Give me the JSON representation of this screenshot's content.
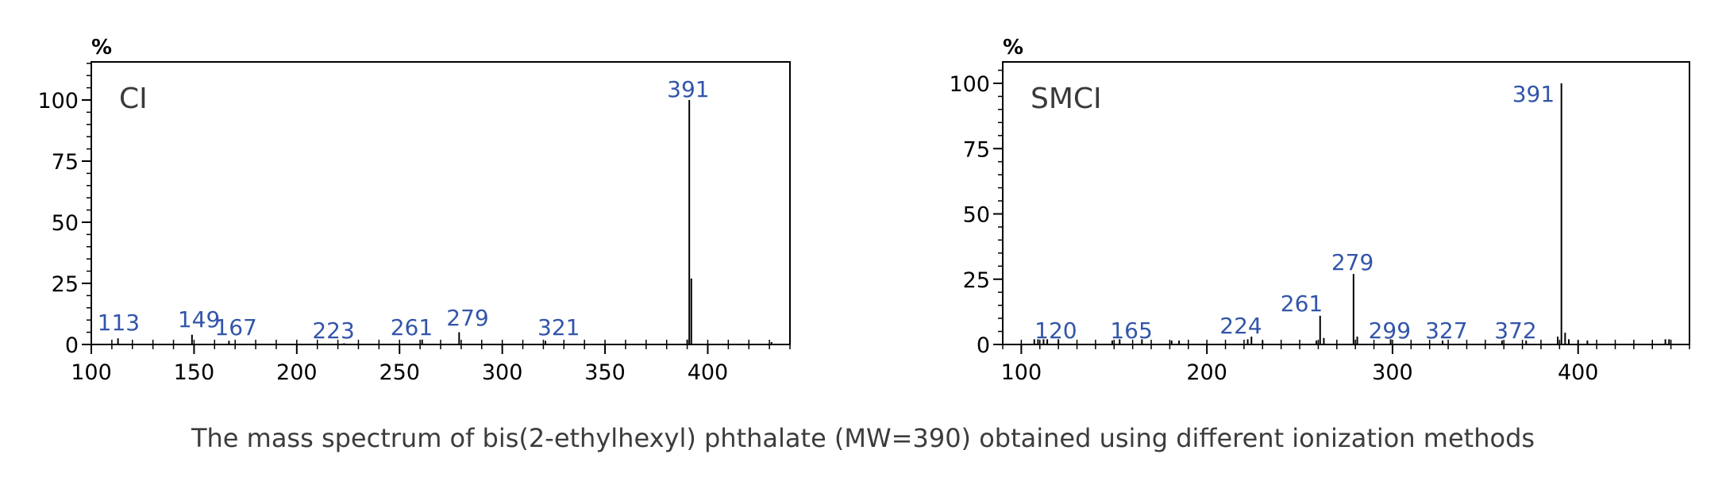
{
  "caption": "The mass spectrum of bis(2-ethylhexyl) phthalate (MW=390) obtained using different ionization methods",
  "colors": {
    "peak_label": "#3355aa",
    "axis": "#000000",
    "caption": "#3c3c3c"
  },
  "chart_data": [
    {
      "type": "bar",
      "panel_label": "CI",
      "y_unit": "%",
      "xlim": [
        100,
        440
      ],
      "ylim": [
        0,
        115
      ],
      "x_ticks": [
        100,
        150,
        200,
        250,
        300,
        350,
        400
      ],
      "y_ticks": [
        0,
        25,
        50,
        75,
        100
      ],
      "peaks": [
        {
          "x": 113,
          "y": 2.5,
          "label": "113"
        },
        {
          "x": 149,
          "y": 4,
          "label": "149"
        },
        {
          "x": 167,
          "y": 1.5,
          "label": "167"
        },
        {
          "x": 223,
          "y": 0.5,
          "label": "223"
        },
        {
          "x": 261,
          "y": 2,
          "label": "261"
        },
        {
          "x": 279,
          "y": 5,
          "label": "279"
        },
        {
          "x": 321,
          "y": 1.5,
          "label": "321"
        },
        {
          "x": 390,
          "y": 2
        },
        {
          "x": 391,
          "y": 100,
          "label": "391"
        },
        {
          "x": 392,
          "y": 27
        },
        {
          "x": 431,
          "y": 1
        }
      ]
    },
    {
      "type": "bar",
      "panel_label": "SMCI",
      "y_unit": "%",
      "xlim": [
        90,
        460
      ],
      "ylim": [
        0,
        110
      ],
      "x_ticks": [
        100,
        200,
        300,
        400
      ],
      "y_ticks": [
        0,
        25,
        50,
        75,
        100
      ],
      "peaks": [
        {
          "x": 107,
          "y": 2
        },
        {
          "x": 109,
          "y": 2
        },
        {
          "x": 112,
          "y": 2
        },
        {
          "x": 114,
          "y": 2
        },
        {
          "x": 120,
          "y": 2,
          "label": "120"
        },
        {
          "x": 149,
          "y": 1.5
        },
        {
          "x": 153,
          "y": 2
        },
        {
          "x": 165,
          "y": 2,
          "label": "165"
        },
        {
          "x": 181,
          "y": 1.5
        },
        {
          "x": 185,
          "y": 1.5
        },
        {
          "x": 222,
          "y": 2
        },
        {
          "x": 224,
          "y": 3,
          "label": "224"
        },
        {
          "x": 230,
          "y": 1.5
        },
        {
          "x": 259,
          "y": 1.5
        },
        {
          "x": 261,
          "y": 11,
          "label": "261"
        },
        {
          "x": 263,
          "y": 2.5
        },
        {
          "x": 279,
          "y": 27,
          "label": "279"
        },
        {
          "x": 281,
          "y": 3
        },
        {
          "x": 299,
          "y": 2,
          "label": "299"
        },
        {
          "x": 327,
          "y": 1.5,
          "label": "327"
        },
        {
          "x": 359,
          "y": 1.5
        },
        {
          "x": 372,
          "y": 1.5,
          "label": "372"
        },
        {
          "x": 389,
          "y": 3
        },
        {
          "x": 391,
          "y": 100,
          "label": "391"
        },
        {
          "x": 393,
          "y": 4.5
        },
        {
          "x": 395,
          "y": 2
        },
        {
          "x": 400,
          "y": 1.5
        },
        {
          "x": 405,
          "y": 1.5
        },
        {
          "x": 447,
          "y": 2
        },
        {
          "x": 449,
          "y": 2
        }
      ]
    }
  ]
}
